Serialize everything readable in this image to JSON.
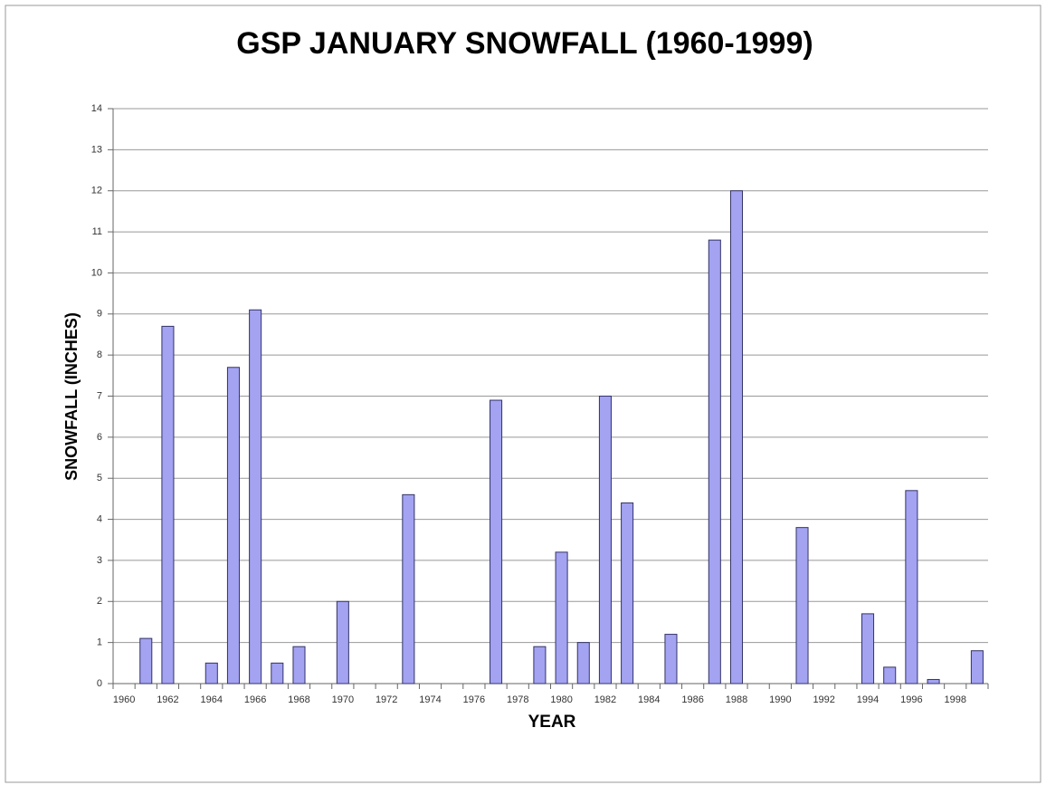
{
  "chart_data": {
    "type": "bar",
    "title": "GSP JANUARY SNOWFALL (1960-1999)",
    "x_label": "YEAR",
    "y_label": "SNOWFALL (INCHES)",
    "categories": [
      "1960",
      null,
      "1962",
      null,
      "1964",
      null,
      "1966",
      null,
      "1968",
      null,
      "1970",
      null,
      "1972",
      null,
      "1974",
      null,
      "1976",
      null,
      "1978",
      null,
      "1980",
      null,
      "1982",
      null,
      "1984",
      null,
      "1986",
      null,
      "1988",
      null,
      "1990",
      null,
      "1992",
      null,
      "1994",
      null,
      "1996",
      null,
      "1998",
      null
    ],
    "values": [
      0,
      1.1,
      8.7,
      0,
      0.5,
      7.7,
      9.1,
      0.5,
      0.9,
      0,
      2.0,
      0,
      0,
      4.6,
      0,
      0,
      0,
      6.9,
      0,
      0.9,
      3.2,
      1.0,
      7.0,
      4.4,
      0,
      1.2,
      0,
      10.8,
      12.0,
      0,
      0,
      3.8,
      0,
      0,
      1.7,
      0.4,
      4.7,
      0.1,
      0,
      0.8
    ],
    "color": "#a3a3f2",
    "ylim": [
      0,
      14
    ],
    "yticks": [
      0,
      1,
      2,
      3,
      4,
      5,
      6,
      7,
      8,
      9,
      10,
      11,
      12,
      13,
      14
    ],
    "grid": true
  }
}
